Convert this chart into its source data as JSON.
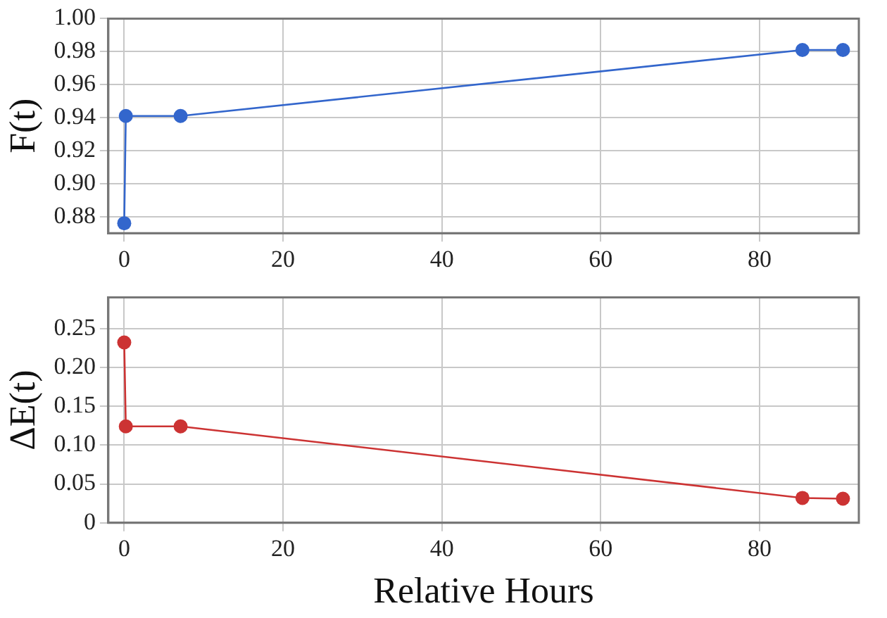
{
  "chart_data": [
    {
      "type": "line",
      "ylabel": "F(t)",
      "x": [
        0,
        0.2,
        7.1,
        85.4,
        90.5
      ],
      "series": [
        {
          "color": "#3366cc",
          "values": [
            0.876,
            0.941,
            0.941,
            0.981,
            0.981
          ]
        }
      ],
      "xlim": [
        -2,
        92.5
      ],
      "xticks": [
        0,
        20,
        40,
        60,
        80
      ],
      "ylim": [
        0.87,
        1.0
      ],
      "yticks": [
        {
          "value": 0.88,
          "label": "0.88"
        },
        {
          "value": 0.9,
          "label": "0.90"
        },
        {
          "value": 0.92,
          "label": "0.92"
        },
        {
          "value": 0.94,
          "label": "0.94"
        },
        {
          "value": 0.96,
          "label": "0.96"
        },
        {
          "value": 0.98,
          "label": "0.98"
        },
        {
          "value": 1.0,
          "label": "1.00"
        }
      ],
      "grid": true,
      "marker": "circle",
      "legend": false
    },
    {
      "type": "line",
      "ylabel": "ΔE(t)",
      "xlabel": "Relative Hours",
      "x": [
        0,
        0.2,
        7.1,
        85.4,
        90.5
      ],
      "series": [
        {
          "color": "#cc3333",
          "values": [
            0.232,
            0.124,
            0.124,
            0.032,
            0.031
          ]
        }
      ],
      "xlim": [
        -2,
        92.5
      ],
      "xticks": [
        0,
        20,
        40,
        60,
        80
      ],
      "ylim": [
        0,
        0.29
      ],
      "yticks": [
        0,
        0.05,
        {
          "value": 0.1,
          "label": "0.10"
        },
        0.15,
        {
          "value": 0.2,
          "label": "0.20"
        },
        0.25
      ],
      "grid": true,
      "marker": "circle",
      "legend": false
    }
  ]
}
